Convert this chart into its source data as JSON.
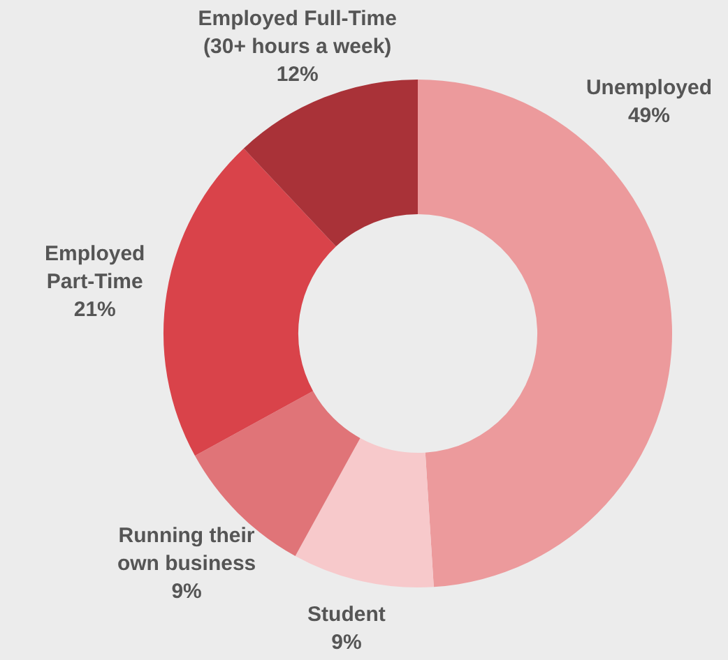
{
  "chart_data": {
    "type": "donut",
    "categories": [
      "Unemployed",
      "Student",
      "Running their\nown business",
      "Employed\nPart-Time",
      "Employed Full-Time\n(30+ hours a week)"
    ],
    "values": [
      49,
      9,
      9,
      21,
      12
    ],
    "value_labels": [
      "49%",
      "9%",
      "9%",
      "21%",
      "12%"
    ],
    "colors": [
      "#ec9a9c",
      "#f7c9cb",
      "#e07478",
      "#d9434a",
      "#a93238"
    ],
    "legend": false
  }
}
